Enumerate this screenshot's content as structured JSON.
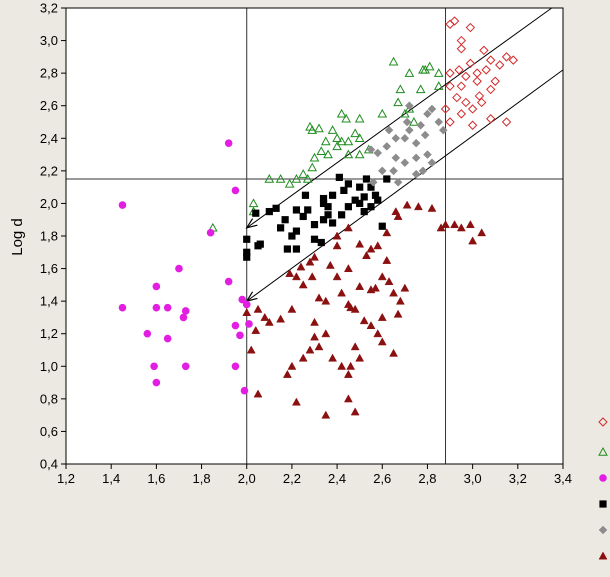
{
  "chart_data": {
    "type": "scatter",
    "title": "",
    "xlabel": "",
    "ylabel": "Log d",
    "xlim": [
      1.2,
      3.4
    ],
    "ylim": [
      0.4,
      3.2
    ],
    "xticks": [
      "1,2",
      "1,4",
      "1,6",
      "1,8",
      "2,0",
      "2,2",
      "2,4",
      "2,6",
      "2,8",
      "3,0",
      "3,2",
      "3,4"
    ],
    "yticks": [
      "0,4",
      "0,6",
      "0,8",
      "1,0",
      "1,2",
      "1,4",
      "1,6",
      "1,8",
      "2,0",
      "2,2",
      "2,4",
      "2,6",
      "2,8",
      "3,0",
      "3,2"
    ],
    "grid": false,
    "legend_position": "right",
    "reference_lines": {
      "vertical_x": [
        2.0,
        2.88
      ],
      "horizontal_y": [
        2.15
      ]
    },
    "diagonal_lines": [
      {
        "from": [
          2.0,
          1.85
        ],
        "to": [
          3.4,
          3.25
        ],
        "arrow_at_start": true
      },
      {
        "from": [
          2.0,
          1.4
        ],
        "to": [
          3.4,
          2.82
        ],
        "arrow_at_start": true
      }
    ],
    "series": [
      {
        "marker": "diamond-open",
        "color": "#d42a2a",
        "points": [
          [
            2.9,
            3.1
          ],
          [
            2.92,
            3.12
          ],
          [
            2.95,
            3.0
          ],
          [
            2.99,
            3.08
          ],
          [
            2.95,
            2.95
          ],
          [
            2.99,
            2.86
          ],
          [
            3.05,
            2.94
          ],
          [
            3.08,
            2.88
          ],
          [
            3.12,
            2.85
          ],
          [
            3.15,
            2.9
          ],
          [
            3.18,
            2.88
          ],
          [
            3.06,
            2.82
          ],
          [
            3.02,
            2.8
          ],
          [
            2.97,
            2.78
          ],
          [
            2.94,
            2.82
          ],
          [
            2.9,
            2.8
          ],
          [
            2.95,
            2.72
          ],
          [
            3.02,
            2.75
          ],
          [
            3.08,
            2.7
          ],
          [
            3.1,
            2.75
          ],
          [
            3.04,
            2.62
          ],
          [
            3.0,
            2.58
          ],
          [
            2.97,
            2.62
          ],
          [
            2.93,
            2.65
          ],
          [
            2.88,
            2.58
          ],
          [
            2.9,
            2.5
          ],
          [
            3.0,
            2.48
          ],
          [
            3.08,
            2.52
          ],
          [
            3.15,
            2.5
          ],
          [
            2.95,
            2.55
          ],
          [
            3.03,
            2.66
          ],
          [
            2.9,
            2.72
          ]
        ]
      },
      {
        "marker": "triangle-open",
        "color": "#1e8c1e",
        "points": [
          [
            2.65,
            2.87
          ],
          [
            2.72,
            2.8
          ],
          [
            2.81,
            2.84
          ],
          [
            2.79,
            2.82
          ],
          [
            2.78,
            2.82
          ],
          [
            2.68,
            2.7
          ],
          [
            2.77,
            2.7
          ],
          [
            2.85,
            2.72
          ],
          [
            2.85,
            2.8
          ],
          [
            2.6,
            2.55
          ],
          [
            2.67,
            2.62
          ],
          [
            2.7,
            2.55
          ],
          [
            2.72,
            2.58
          ],
          [
            2.74,
            2.5
          ],
          [
            2.44,
            2.52
          ],
          [
            2.5,
            2.52
          ],
          [
            2.42,
            2.55
          ],
          [
            2.48,
            2.43
          ],
          [
            2.45,
            2.38
          ],
          [
            2.4,
            2.35
          ],
          [
            2.33,
            2.32
          ],
          [
            2.29,
            2.45
          ],
          [
            2.28,
            2.47
          ],
          [
            2.32,
            2.46
          ],
          [
            2.38,
            2.45
          ],
          [
            2.4,
            2.4
          ],
          [
            2.35,
            2.38
          ],
          [
            2.5,
            2.3
          ],
          [
            2.54,
            2.33
          ],
          [
            2.5,
            2.4
          ],
          [
            2.3,
            2.28
          ],
          [
            2.29,
            2.22
          ],
          [
            2.27,
            2.15
          ],
          [
            2.22,
            2.15
          ],
          [
            2.19,
            2.12
          ],
          [
            2.15,
            2.15
          ],
          [
            2.1,
            2.15
          ],
          [
            2.25,
            2.18
          ],
          [
            2.03,
            2.0
          ],
          [
            2.03,
            1.95
          ],
          [
            1.85,
            1.85
          ],
          [
            2.42,
            2.38
          ],
          [
            2.45,
            2.3
          ],
          [
            2.36,
            2.3
          ]
        ]
      },
      {
        "marker": "circle-filled",
        "color": "#e11ee1",
        "points": [
          [
            1.92,
            2.37
          ],
          [
            1.95,
            2.08
          ],
          [
            1.45,
            1.99
          ],
          [
            1.84,
            1.82
          ],
          [
            1.7,
            1.6
          ],
          [
            1.6,
            1.49
          ],
          [
            1.92,
            1.52
          ],
          [
            1.98,
            1.41
          ],
          [
            2.0,
            1.38
          ],
          [
            2.01,
            1.26
          ],
          [
            1.45,
            1.36
          ],
          [
            1.6,
            1.36
          ],
          [
            1.65,
            1.36
          ],
          [
            1.73,
            1.34
          ],
          [
            1.72,
            1.3
          ],
          [
            1.56,
            1.2
          ],
          [
            1.65,
            1.17
          ],
          [
            1.59,
            1.0
          ],
          [
            1.73,
            1.0
          ],
          [
            1.95,
            1.25
          ],
          [
            1.97,
            1.19
          ],
          [
            1.95,
            1.0
          ],
          [
            1.6,
            0.9
          ],
          [
            1.99,
            0.85
          ]
        ]
      },
      {
        "marker": "square-filled",
        "color": "#000000",
        "points": [
          [
            2.0,
            1.78
          ],
          [
            2.0,
            1.7
          ],
          [
            2.0,
            1.67
          ],
          [
            2.05,
            1.74
          ],
          [
            2.06,
            1.75
          ],
          [
            2.04,
            1.94
          ],
          [
            2.1,
            1.95
          ],
          [
            2.13,
            1.97
          ],
          [
            2.15,
            1.85
          ],
          [
            2.17,
            1.9
          ],
          [
            2.2,
            1.8
          ],
          [
            2.22,
            1.83
          ],
          [
            2.18,
            1.72
          ],
          [
            2.22,
            1.72
          ],
          [
            2.25,
            1.92
          ],
          [
            2.22,
            1.96
          ],
          [
            2.27,
            1.96
          ],
          [
            2.26,
            2.05
          ],
          [
            2.3,
            1.78
          ],
          [
            2.33,
            1.76
          ],
          [
            2.3,
            1.87
          ],
          [
            2.34,
            1.9
          ],
          [
            2.36,
            1.98
          ],
          [
            2.34,
            2.03
          ],
          [
            2.38,
            2.05
          ],
          [
            2.36,
            1.93
          ],
          [
            2.38,
            1.88
          ],
          [
            2.43,
            2.08
          ],
          [
            2.41,
            2.16
          ],
          [
            2.45,
            2.12
          ],
          [
            2.48,
            2.02
          ],
          [
            2.5,
            2.0
          ],
          [
            2.52,
            2.04
          ],
          [
            2.5,
            2.1
          ],
          [
            2.53,
            2.15
          ],
          [
            2.55,
            2.1
          ],
          [
            2.57,
            2.05
          ],
          [
            2.55,
            1.98
          ],
          [
            2.58,
            2.02
          ],
          [
            2.62,
            2.15
          ],
          [
            2.45,
            1.98
          ],
          [
            2.42,
            1.93
          ],
          [
            2.6,
            1.86
          ],
          [
            2.52,
            1.95
          ],
          [
            2.34,
            2.0
          ]
        ]
      },
      {
        "marker": "diamond-filled",
        "color": "#8c8c8c",
        "points": [
          [
            2.55,
            2.33
          ],
          [
            2.58,
            2.31
          ],
          [
            2.62,
            2.35
          ],
          [
            2.63,
            2.45
          ],
          [
            2.66,
            2.4
          ],
          [
            2.71,
            2.5
          ],
          [
            2.7,
            2.4
          ],
          [
            2.72,
            2.45
          ],
          [
            2.75,
            2.37
          ],
          [
            2.79,
            2.42
          ],
          [
            2.8,
            2.55
          ],
          [
            2.82,
            2.58
          ],
          [
            2.85,
            2.5
          ],
          [
            2.8,
            2.3
          ],
          [
            2.82,
            2.25
          ],
          [
            2.78,
            2.2
          ],
          [
            2.75,
            2.28
          ],
          [
            2.7,
            2.25
          ],
          [
            2.65,
            2.2
          ],
          [
            2.6,
            2.2
          ],
          [
            2.56,
            2.13
          ],
          [
            2.67,
            2.13
          ],
          [
            2.75,
            2.18
          ],
          [
            2.87,
            2.45
          ],
          [
            2.72,
            2.6
          ],
          [
            2.66,
            2.28
          ],
          [
            2.77,
            2.48
          ]
        ]
      },
      {
        "marker": "triangle-filled",
        "color": "#8b1010",
        "points": [
          [
            2.76,
            1.98
          ],
          [
            2.82,
            1.97
          ],
          [
            2.86,
            1.85
          ],
          [
            2.88,
            1.87
          ],
          [
            2.95,
            1.85
          ],
          [
            2.92,
            1.87
          ],
          [
            2.99,
            1.87
          ],
          [
            3.0,
            1.77
          ],
          [
            3.04,
            1.82
          ],
          [
            2.71,
            1.99
          ],
          [
            2.67,
            1.92
          ],
          [
            2.62,
            1.82
          ],
          [
            2.58,
            1.74
          ],
          [
            2.55,
            1.72
          ],
          [
            2.5,
            1.75
          ],
          [
            2.53,
            1.68
          ],
          [
            2.45,
            1.85
          ],
          [
            2.4,
            1.8
          ],
          [
            2.4,
            1.74
          ],
          [
            2.37,
            1.62
          ],
          [
            2.3,
            1.67
          ],
          [
            2.28,
            1.64
          ],
          [
            2.24,
            1.61
          ],
          [
            2.19,
            1.57
          ],
          [
            2.22,
            1.55
          ],
          [
            2.25,
            1.5
          ],
          [
            2.29,
            1.55
          ],
          [
            2.32,
            1.42
          ],
          [
            2.35,
            1.4
          ],
          [
            2.42,
            1.45
          ],
          [
            2.45,
            1.38
          ],
          [
            2.46,
            1.36
          ],
          [
            2.48,
            1.35
          ],
          [
            2.52,
            1.28
          ],
          [
            2.55,
            1.47
          ],
          [
            2.57,
            1.48
          ],
          [
            2.6,
            1.55
          ],
          [
            2.63,
            1.52
          ],
          [
            2.65,
            1.45
          ],
          [
            2.68,
            1.4
          ],
          [
            2.7,
            1.48
          ],
          [
            2.4,
            1.55
          ],
          [
            2.45,
            1.6
          ],
          [
            2.5,
            1.49
          ],
          [
            2.35,
            1.2
          ],
          [
            2.3,
            1.27
          ],
          [
            2.3,
            1.18
          ],
          [
            2.28,
            1.1
          ],
          [
            2.25,
            1.05
          ],
          [
            2.2,
            1.0
          ],
          [
            2.05,
            1.35
          ],
          [
            2.08,
            1.3
          ],
          [
            2.1,
            1.27
          ],
          [
            2.15,
            1.29
          ],
          [
            2.0,
            1.33
          ],
          [
            2.04,
            1.22
          ],
          [
            2.2,
            1.35
          ],
          [
            2.38,
            1.05
          ],
          [
            2.42,
            1.0
          ],
          [
            2.45,
            0.95
          ],
          [
            2.46,
            1.0
          ],
          [
            2.48,
            1.12
          ],
          [
            2.5,
            1.05
          ],
          [
            2.35,
            0.7
          ],
          [
            2.18,
            0.95
          ],
          [
            2.22,
            0.78
          ],
          [
            2.45,
            0.8
          ],
          [
            2.48,
            0.72
          ],
          [
            2.58,
            1.2
          ],
          [
            2.6,
            1.15
          ],
          [
            2.65,
            1.08
          ],
          [
            2.05,
            0.83
          ],
          [
            2.6,
            1.3
          ],
          [
            2.55,
            1.25
          ],
          [
            2.67,
            1.32
          ],
          [
            2.02,
            1.1
          ],
          [
            2.32,
            1.12
          ],
          [
            2.62,
            1.65
          ],
          [
            2.66,
            1.95
          ]
        ]
      }
    ]
  }
}
